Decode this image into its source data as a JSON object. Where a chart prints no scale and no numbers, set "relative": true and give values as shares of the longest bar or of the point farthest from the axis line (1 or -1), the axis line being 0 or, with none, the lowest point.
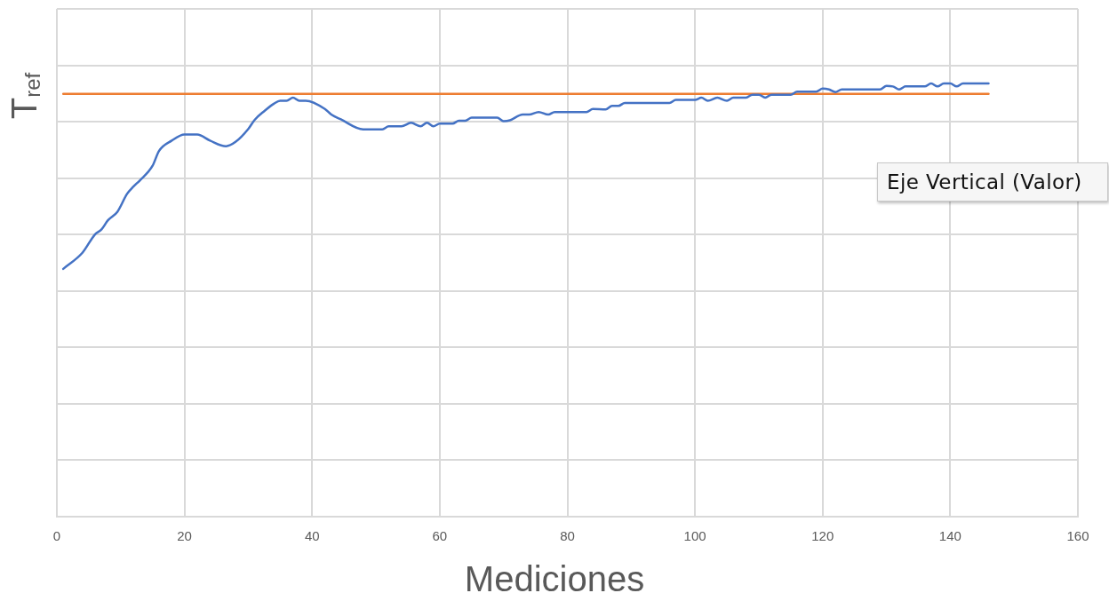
{
  "chart_data": {
    "type": "line",
    "xlabel": "Mediciones",
    "ylabel": "T$_{ref}$",
    "relative": true,
    "grid": true,
    "xlim": [
      0,
      160
    ],
    "xticks": [
      0,
      20,
      40,
      60,
      80,
      100,
      120,
      140,
      160
    ],
    "annotations": [
      "Eje Vertical (Valor)"
    ],
    "series": [
      {
        "color": "#4472c4",
        "x": [
          1,
          4,
          6,
          7,
          8,
          9.5,
          11,
          12,
          13,
          15,
          16,
          18,
          20,
          22,
          24,
          26.5,
          28,
          30,
          31,
          32.5,
          34,
          35,
          36,
          37,
          38,
          39,
          42,
          43,
          44.5,
          48,
          51,
          52,
          54,
          55.5,
          57,
          58,
          59,
          60,
          62,
          63,
          64,
          65,
          69,
          70,
          71,
          73,
          74,
          75.5,
          77,
          78,
          83,
          84,
          86,
          87,
          88,
          89,
          96,
          97,
          100,
          101,
          102,
          103.5,
          105,
          106,
          108,
          109,
          110,
          111,
          112,
          115,
          116,
          119,
          120,
          121,
          122,
          123,
          129,
          130,
          131,
          132,
          133,
          136,
          137,
          138,
          139,
          140,
          141,
          142,
          146
        ],
        "values": [
          0.572,
          0.609,
          0.652,
          0.663,
          0.684,
          0.704,
          0.745,
          0.762,
          0.776,
          0.81,
          0.844,
          0.868,
          0.882,
          0.882,
          0.868,
          0.855,
          0.865,
          0.895,
          0.916,
          0.936,
          0.953,
          0.96,
          0.96,
          0.967,
          0.96,
          0.96,
          0.941,
          0.928,
          0.917,
          0.894,
          0.894,
          0.901,
          0.901,
          0.909,
          0.901,
          0.909,
          0.901,
          0.907,
          0.907,
          0.914,
          0.914,
          0.921,
          0.921,
          0.913,
          0.915,
          0.928,
          0.928,
          0.934,
          0.928,
          0.934,
          0.934,
          0.941,
          0.94,
          0.948,
          0.948,
          0.955,
          0.955,
          0.962,
          0.962,
          0.967,
          0.96,
          0.967,
          0.96,
          0.967,
          0.967,
          0.974,
          0.974,
          0.967,
          0.974,
          0.974,
          0.981,
          0.981,
          0.988,
          0.986,
          0.98,
          0.986,
          0.986,
          0.994,
          0.993,
          0.986,
          0.993,
          0.993,
          1,
          0.993,
          1,
          1,
          0.993,
          1,
          1
        ]
      },
      {
        "color": "#ed7d31",
        "x": [
          1,
          146
        ],
        "values": [
          0.976,
          0.976
        ]
      }
    ]
  }
}
